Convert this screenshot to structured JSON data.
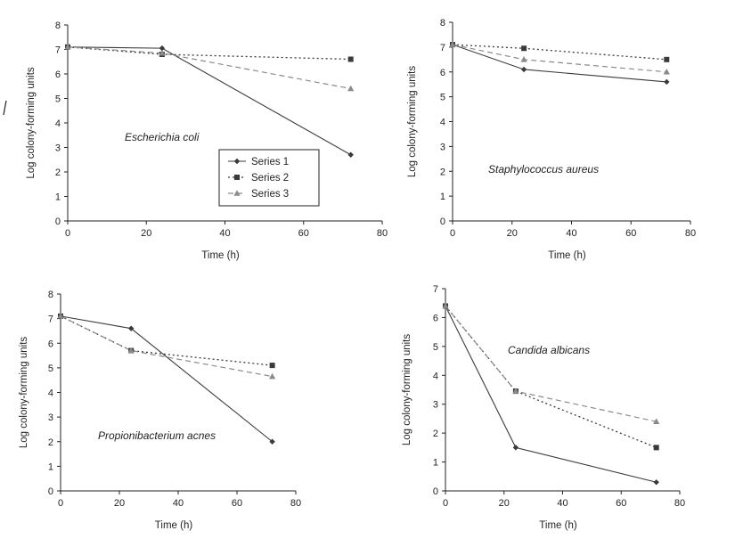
{
  "colors": {
    "series1": "#3a3a3a",
    "series2": "#3a3a3a",
    "series3": "#8a8a8a",
    "axis": "#222222"
  },
  "chart_data": [
    {
      "type": "line",
      "annotation": "Escherichia coli",
      "xlabel": "Time (h)",
      "ylabel": "Log colony-forming units",
      "xlim": [
        0,
        80
      ],
      "ylim": [
        0,
        8
      ],
      "xticks": [
        0,
        20,
        40,
        60,
        80
      ],
      "yticks": [
        0,
        1,
        2,
        3,
        4,
        5,
        6,
        7,
        8
      ],
      "legend": {
        "position": "center",
        "entries": [
          "Series 1",
          "Series 2",
          "Series 3"
        ]
      },
      "series": [
        {
          "name": "Series 1",
          "x": [
            0,
            24,
            72
          ],
          "y": [
            7.1,
            7.05,
            2.7
          ]
        },
        {
          "name": "Series 2",
          "x": [
            0,
            24,
            72
          ],
          "y": [
            7.1,
            6.8,
            6.6
          ]
        },
        {
          "name": "Series 3",
          "x": [
            0,
            24,
            72
          ],
          "y": [
            7.1,
            6.85,
            5.4
          ]
        }
      ]
    },
    {
      "type": "line",
      "annotation": "Staphylococcus aureus",
      "xlabel": "Time (h)",
      "ylabel": "Log colony-forming units",
      "xlim": [
        0,
        80
      ],
      "ylim": [
        0,
        8
      ],
      "xticks": [
        0,
        20,
        40,
        60,
        80
      ],
      "yticks": [
        0,
        1,
        2,
        3,
        4,
        5,
        6,
        7,
        8
      ],
      "series": [
        {
          "name": "Series 1",
          "x": [
            0,
            24,
            72
          ],
          "y": [
            7.1,
            6.1,
            5.6
          ]
        },
        {
          "name": "Series 2",
          "x": [
            0,
            24,
            72
          ],
          "y": [
            7.1,
            6.95,
            6.5
          ]
        },
        {
          "name": "Series 3",
          "x": [
            0,
            24,
            72
          ],
          "y": [
            7.1,
            6.5,
            6.0
          ]
        }
      ]
    },
    {
      "type": "line",
      "annotation": "Propionibacterium acnes",
      "xlabel": "Time (h)",
      "ylabel": "Log colony-forming units",
      "xlim": [
        0,
        80
      ],
      "ylim": [
        0,
        8
      ],
      "xticks": [
        0,
        20,
        40,
        60,
        80
      ],
      "yticks": [
        0,
        1,
        2,
        3,
        4,
        5,
        6,
        7,
        8
      ],
      "series": [
        {
          "name": "Series 1",
          "x": [
            0,
            24,
            72
          ],
          "y": [
            7.1,
            6.6,
            2.0
          ]
        },
        {
          "name": "Series 2",
          "x": [
            0,
            24,
            72
          ],
          "y": [
            7.1,
            5.7,
            5.1
          ]
        },
        {
          "name": "Series 3",
          "x": [
            0,
            24,
            72
          ],
          "y": [
            7.1,
            5.7,
            4.65
          ]
        }
      ]
    },
    {
      "type": "line",
      "annotation": "Candida albicans",
      "xlabel": "Time (h)",
      "ylabel": "Log colony-forming units",
      "xlim": [
        0,
        80
      ],
      "ylim": [
        0,
        7
      ],
      "xticks": [
        0,
        20,
        40,
        60,
        80
      ],
      "yticks": [
        0,
        1,
        2,
        3,
        4,
        5,
        6,
        7
      ],
      "series": [
        {
          "name": "Series 1",
          "x": [
            0,
            24,
            72
          ],
          "y": [
            6.4,
            1.5,
            0.3
          ]
        },
        {
          "name": "Series 2",
          "x": [
            0,
            24,
            72
          ],
          "y": [
            6.4,
            3.45,
            1.5
          ]
        },
        {
          "name": "Series 3",
          "x": [
            0,
            24,
            72
          ],
          "y": [
            6.4,
            3.45,
            2.4
          ]
        }
      ]
    }
  ]
}
